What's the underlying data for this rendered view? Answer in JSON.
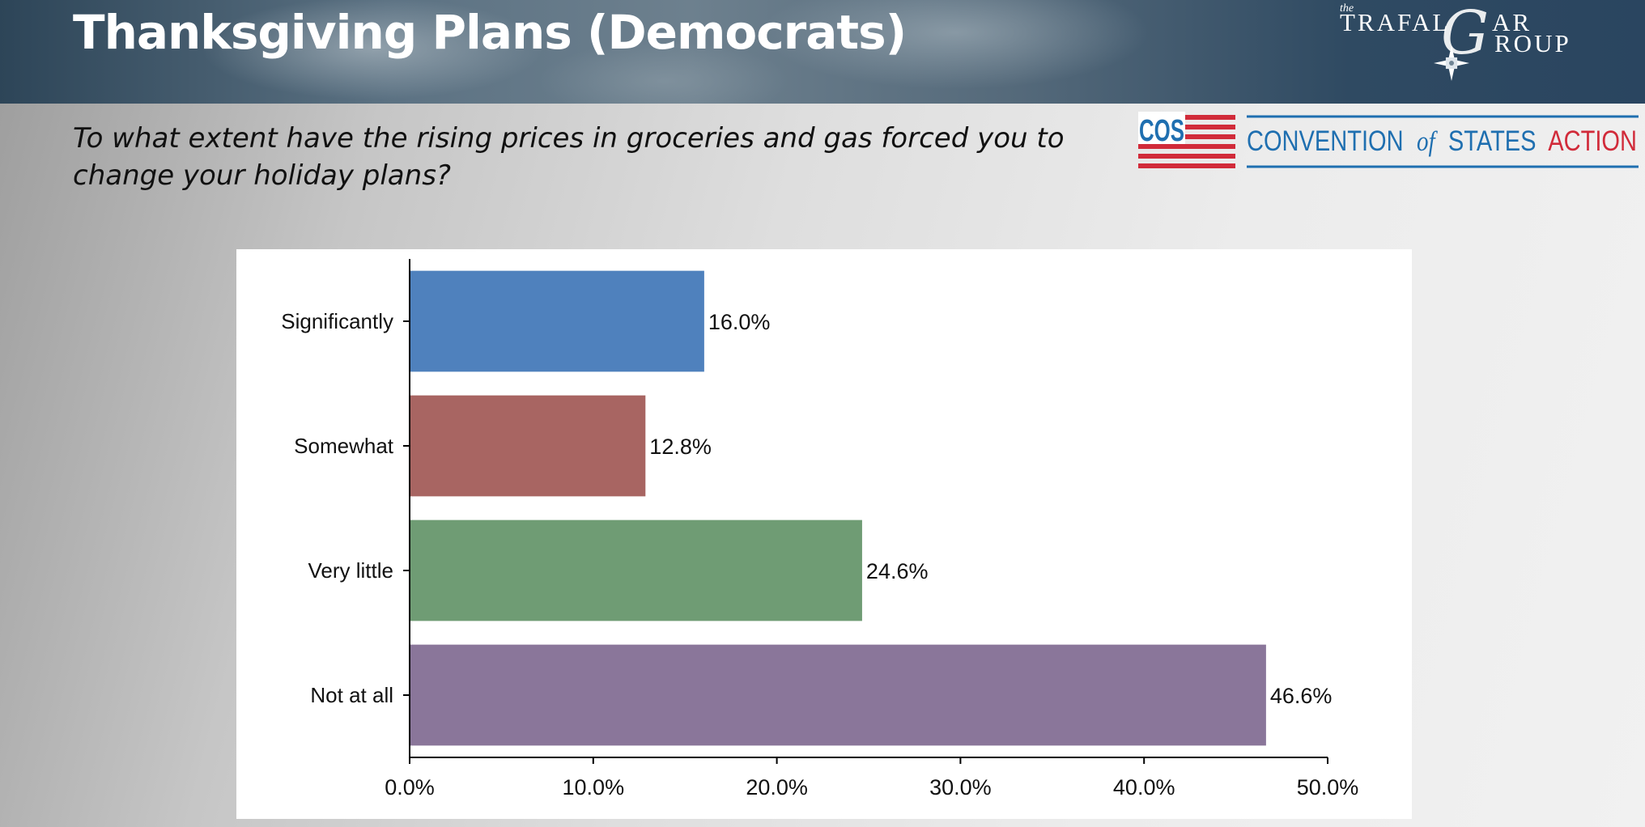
{
  "header": {
    "title": "Thanksgiving Plans (Democrats)",
    "logo": {
      "small": "the",
      "line1": "TRAFAL",
      "g_glyph": "G",
      "line1_end": "AR",
      "line2": "ROUP"
    }
  },
  "question": "To what extent have the rising prices in groceries and gas forced you to change your holiday plans?",
  "cos_logo": {
    "mark": "COS",
    "w1": "CONVENTION",
    "w2": "of",
    "w3": "STATES",
    "w4": "ACTION",
    "colors": {
      "blue": "#1f6fb0",
      "red": "#d12b3a"
    }
  },
  "chart_data": {
    "type": "bar",
    "orientation": "horizontal",
    "categories": [
      "Significantly",
      "Somewhat",
      "Very little",
      "Not at all"
    ],
    "values": [
      16.0,
      12.8,
      24.6,
      46.6
    ],
    "value_labels": [
      "16.0%",
      "12.8%",
      "24.6%",
      "46.6%"
    ],
    "colors": [
      "#4f81bd",
      "#a86562",
      "#6f9c74",
      "#8a769a"
    ],
    "xlim": [
      0,
      50
    ],
    "xticks": [
      0,
      10,
      20,
      30,
      40,
      50
    ],
    "xtick_labels": [
      "0.0%",
      "10.0%",
      "20.0%",
      "30.0%",
      "40.0%",
      "50.0%"
    ],
    "title": "",
    "xlabel": "",
    "ylabel": "",
    "grid": false,
    "legend": "none"
  }
}
